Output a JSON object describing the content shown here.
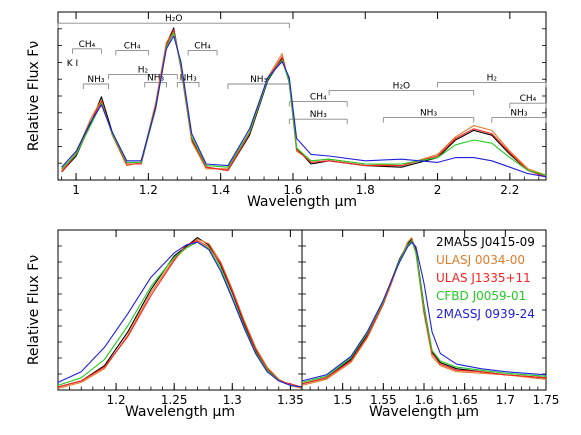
{
  "chart_data": [
    {
      "type": "line",
      "xlabel": "Wavelength μm",
      "ylabel": "Relative Flux Fν",
      "xlim": [
        0.95,
        2.3
      ],
      "ylim": [
        0,
        1.05
      ],
      "x_ticks": [
        "1",
        "1.2",
        "1.4",
        "1.6",
        "1.8",
        "2",
        "2.2"
      ],
      "x_tick_values": [
        1.0,
        1.2,
        1.4,
        1.6,
        1.8,
        2.0,
        2.2
      ],
      "annotations": [
        {
          "label": "H₂O",
          "x0": 0.95,
          "x1": 1.59,
          "y": 0.98
        },
        {
          "label": "CH₄",
          "x0": 0.99,
          "x1": 1.07,
          "y": 0.82
        },
        {
          "label": "K I",
          "x0": 0.99,
          "x1": 0.99,
          "y": 0.7
        },
        {
          "label": "NH₃",
          "x0": 1.02,
          "x1": 1.09,
          "y": 0.6
        },
        {
          "label": "CH₄",
          "x0": 1.11,
          "x1": 1.2,
          "y": 0.81
        },
        {
          "label": "H₂",
          "x0": 1.09,
          "x1": 1.28,
          "y": 0.66
        },
        {
          "label": "NH₃",
          "x0": 1.19,
          "x1": 1.25,
          "y": 0.61
        },
        {
          "label": "CH₄",
          "x0": 1.31,
          "x1": 1.39,
          "y": 0.81
        },
        {
          "label": "NH₃",
          "x0": 1.28,
          "x1": 1.34,
          "y": 0.61
        },
        {
          "label": "NH₃",
          "x0": 1.42,
          "x1": 1.59,
          "y": 0.6
        },
        {
          "label": "H₂O",
          "x0": 1.7,
          "x1": 2.1,
          "y": 0.56
        },
        {
          "label": "CH₄",
          "x0": 1.59,
          "x1": 1.75,
          "y": 0.49
        },
        {
          "label": "NH₃",
          "x0": 1.59,
          "x1": 1.75,
          "y": 0.38
        },
        {
          "label": "NH₃",
          "x0": 1.85,
          "x1": 2.1,
          "y": 0.39
        },
        {
          "label": "H₂",
          "x0": 2.0,
          "x1": 2.3,
          "y": 0.61
        },
        {
          "label": "CH₄",
          "x0": 2.2,
          "x1": 2.3,
          "y": 0.48
        },
        {
          "label": "NH₃",
          "x0": 2.15,
          "x1": 2.3,
          "y": 0.39
        }
      ],
      "series": [
        {
          "color": "#000000",
          "x": [
            0.96,
            1.0,
            1.04,
            1.07,
            1.1,
            1.14,
            1.18,
            1.22,
            1.25,
            1.27,
            1.29,
            1.32,
            1.36,
            1.42,
            1.48,
            1.53,
            1.57,
            1.59,
            1.61,
            1.65,
            1.7,
            1.8,
            1.9,
            2.0,
            2.05,
            2.1,
            2.15,
            2.2,
            2.25,
            2.3
          ],
          "y": [
            0.05,
            0.15,
            0.35,
            0.52,
            0.3,
            0.1,
            0.1,
            0.45,
            0.85,
            0.95,
            0.7,
            0.25,
            0.08,
            0.06,
            0.28,
            0.62,
            0.76,
            0.62,
            0.2,
            0.1,
            0.12,
            0.09,
            0.08,
            0.14,
            0.25,
            0.31,
            0.28,
            0.16,
            0.06,
            0.02
          ]
        },
        {
          "color": "#e07b2a",
          "x": [
            0.96,
            1.0,
            1.04,
            1.07,
            1.1,
            1.14,
            1.18,
            1.22,
            1.25,
            1.27,
            1.29,
            1.32,
            1.36,
            1.42,
            1.48,
            1.53,
            1.57,
            1.59,
            1.61,
            1.65,
            1.7,
            1.8,
            1.9,
            2.0,
            2.05,
            2.1,
            2.15,
            2.2,
            2.25,
            2.3
          ],
          "y": [
            0.06,
            0.17,
            0.38,
            0.5,
            0.28,
            0.09,
            0.11,
            0.48,
            0.86,
            0.93,
            0.7,
            0.24,
            0.07,
            0.07,
            0.3,
            0.64,
            0.79,
            0.6,
            0.18,
            0.12,
            0.13,
            0.1,
            0.09,
            0.16,
            0.27,
            0.34,
            0.31,
            0.18,
            0.07,
            0.03
          ]
        },
        {
          "color": "#ff2020",
          "x": [
            0.96,
            1.0,
            1.04,
            1.07,
            1.1,
            1.14,
            1.18,
            1.22,
            1.25,
            1.27,
            1.29,
            1.32,
            1.36,
            1.42,
            1.48,
            1.53,
            1.57,
            1.59,
            1.61,
            1.65,
            1.7,
            1.8,
            1.9,
            2.0,
            2.05,
            2.1,
            2.15,
            2.2,
            2.25,
            2.3
          ],
          "y": [
            0.05,
            0.16,
            0.36,
            0.49,
            0.29,
            0.1,
            0.1,
            0.46,
            0.84,
            0.94,
            0.71,
            0.26,
            0.08,
            0.06,
            0.29,
            0.63,
            0.77,
            0.61,
            0.19,
            0.11,
            0.12,
            0.09,
            0.09,
            0.15,
            0.26,
            0.32,
            0.29,
            0.17,
            0.06,
            0.02
          ]
        },
        {
          "color": "#22cc22",
          "x": [
            0.96,
            1.0,
            1.04,
            1.07,
            1.1,
            1.14,
            1.18,
            1.22,
            1.25,
            1.27,
            1.29,
            1.32,
            1.36,
            1.42,
            1.48,
            1.53,
            1.57,
            1.59,
            1.61,
            1.65,
            1.7,
            1.8,
            1.9,
            2.0,
            2.05,
            2.1,
            2.15,
            2.2,
            2.25,
            2.3
          ],
          "y": [
            0.07,
            0.16,
            0.34,
            0.48,
            0.29,
            0.11,
            0.11,
            0.44,
            0.83,
            0.92,
            0.72,
            0.27,
            0.09,
            0.08,
            0.3,
            0.63,
            0.75,
            0.61,
            0.2,
            0.12,
            0.13,
            0.1,
            0.1,
            0.14,
            0.22,
            0.25,
            0.23,
            0.14,
            0.06,
            0.03
          ]
        },
        {
          "color": "#2020dd",
          "x": [
            0.96,
            1.0,
            1.04,
            1.07,
            1.1,
            1.14,
            1.18,
            1.22,
            1.25,
            1.27,
            1.29,
            1.32,
            1.36,
            1.42,
            1.48,
            1.53,
            1.57,
            1.59,
            1.61,
            1.65,
            1.7,
            1.8,
            1.9,
            2.0,
            2.05,
            2.1,
            2.15,
            2.2,
            2.25,
            2.3
          ],
          "y": [
            0.08,
            0.18,
            0.36,
            0.47,
            0.3,
            0.12,
            0.12,
            0.45,
            0.82,
            0.9,
            0.74,
            0.29,
            0.1,
            0.09,
            0.32,
            0.64,
            0.74,
            0.64,
            0.26,
            0.16,
            0.15,
            0.12,
            0.13,
            0.11,
            0.14,
            0.14,
            0.12,
            0.08,
            0.04,
            0.02
          ]
        }
      ]
    },
    {
      "type": "line",
      "xlabel": "Wavelength μm",
      "ylabel": "Relative Flux Fν",
      "xlim": [
        1.15,
        1.36
      ],
      "ylim": [
        0,
        1.05
      ],
      "x_ticks": [
        "1.2",
        "1.25",
        "1.3",
        "1.35"
      ],
      "x_tick_values": [
        1.2,
        1.25,
        1.3,
        1.35
      ],
      "series": [
        {
          "color": "#000000",
          "x": [
            1.15,
            1.17,
            1.19,
            1.21,
            1.23,
            1.25,
            1.26,
            1.27,
            1.28,
            1.29,
            1.3,
            1.31,
            1.32,
            1.33,
            1.34,
            1.35,
            1.36
          ],
          "y": [
            0.02,
            0.06,
            0.16,
            0.38,
            0.66,
            0.88,
            0.94,
            1.0,
            0.95,
            0.82,
            0.64,
            0.44,
            0.26,
            0.14,
            0.07,
            0.03,
            0.02
          ]
        },
        {
          "color": "#e07b2a",
          "x": [
            1.15,
            1.17,
            1.19,
            1.21,
            1.23,
            1.25,
            1.26,
            1.27,
            1.28,
            1.29,
            1.3,
            1.31,
            1.32,
            1.33,
            1.34,
            1.35,
            1.36
          ],
          "y": [
            0.01,
            0.05,
            0.14,
            0.36,
            0.64,
            0.86,
            0.93,
            0.99,
            0.96,
            0.84,
            0.66,
            0.46,
            0.28,
            0.15,
            0.07,
            0.03,
            0.01
          ]
        },
        {
          "color": "#ff2020",
          "x": [
            1.15,
            1.17,
            1.19,
            1.21,
            1.23,
            1.25,
            1.26,
            1.27,
            1.28,
            1.29,
            1.3,
            1.31,
            1.32,
            1.33,
            1.34,
            1.35,
            1.36
          ],
          "y": [
            0.02,
            0.06,
            0.15,
            0.35,
            0.62,
            0.85,
            0.95,
            0.98,
            0.94,
            0.83,
            0.65,
            0.45,
            0.27,
            0.14,
            0.06,
            0.04,
            0.02
          ]
        },
        {
          "color": "#22cc22",
          "x": [
            1.15,
            1.17,
            1.19,
            1.21,
            1.23,
            1.25,
            1.26,
            1.27,
            1.28,
            1.29,
            1.3,
            1.31,
            1.32,
            1.33,
            1.34,
            1.35,
            1.36
          ],
          "y": [
            0.03,
            0.08,
            0.2,
            0.42,
            0.68,
            0.87,
            0.93,
            0.97,
            0.93,
            0.8,
            0.61,
            0.42,
            0.25,
            0.13,
            0.06,
            0.03,
            0.02
          ]
        },
        {
          "color": "#2020dd",
          "x": [
            1.15,
            1.17,
            1.19,
            1.21,
            1.23,
            1.25,
            1.26,
            1.27,
            1.28,
            1.29,
            1.3,
            1.31,
            1.32,
            1.33,
            1.34,
            1.35,
            1.36
          ],
          "y": [
            0.05,
            0.12,
            0.28,
            0.5,
            0.74,
            0.9,
            0.95,
            0.97,
            0.92,
            0.78,
            0.6,
            0.41,
            0.24,
            0.12,
            0.06,
            0.03,
            0.02
          ]
        }
      ]
    },
    {
      "type": "line",
      "xlim": [
        1.45,
        1.75
      ],
      "ylim": [
        0,
        1.05
      ],
      "x_ticks": [
        "1.5",
        "1.55",
        "1.6",
        "1.65",
        "1.7",
        "1.75"
      ],
      "x_tick_values": [
        1.5,
        1.55,
        1.6,
        1.65,
        1.7,
        1.75
      ],
      "legend_position": "top-right",
      "series": [
        {
          "name": "2MASS J0415-09",
          "color": "#000000",
          "x": [
            1.45,
            1.48,
            1.51,
            1.53,
            1.55,
            1.56,
            1.57,
            1.58,
            1.585,
            1.59,
            1.6,
            1.61,
            1.62,
            1.64,
            1.67,
            1.7,
            1.75
          ],
          "y": [
            0.04,
            0.08,
            0.2,
            0.36,
            0.58,
            0.72,
            0.86,
            0.96,
            0.99,
            0.92,
            0.55,
            0.25,
            0.18,
            0.14,
            0.12,
            0.1,
            0.08
          ]
        },
        {
          "name": "ULASJ 0034-00",
          "color": "#e07b2a",
          "x": [
            1.45,
            1.48,
            1.51,
            1.53,
            1.55,
            1.56,
            1.57,
            1.58,
            1.585,
            1.59,
            1.6,
            1.61,
            1.62,
            1.64,
            1.67,
            1.7,
            1.75
          ],
          "y": [
            0.03,
            0.07,
            0.18,
            0.34,
            0.56,
            0.7,
            0.85,
            0.97,
            1.0,
            0.9,
            0.5,
            0.22,
            0.16,
            0.12,
            0.11,
            0.1,
            0.07
          ]
        },
        {
          "name": "ULAS J1335+11",
          "color": "#ff2020",
          "x": [
            1.45,
            1.48,
            1.51,
            1.53,
            1.55,
            1.56,
            1.57,
            1.58,
            1.585,
            1.59,
            1.6,
            1.61,
            1.62,
            1.64,
            1.67,
            1.7,
            1.75
          ],
          "y": [
            0.04,
            0.08,
            0.19,
            0.35,
            0.57,
            0.71,
            0.85,
            0.95,
            0.98,
            0.91,
            0.52,
            0.24,
            0.17,
            0.13,
            0.12,
            0.1,
            0.08
          ]
        },
        {
          "name": "CFBD J0059-01",
          "color": "#22cc22",
          "x": [
            1.45,
            1.48,
            1.51,
            1.53,
            1.55,
            1.56,
            1.57,
            1.58,
            1.585,
            1.59,
            1.6,
            1.61,
            1.62,
            1.64,
            1.67,
            1.7,
            1.75
          ],
          "y": [
            0.05,
            0.09,
            0.21,
            0.37,
            0.58,
            0.72,
            0.85,
            0.95,
            0.98,
            0.9,
            0.54,
            0.26,
            0.19,
            0.15,
            0.13,
            0.11,
            0.09
          ]
        },
        {
          "name": "2MASSJ 0939-24",
          "color": "#2020dd",
          "x": [
            1.45,
            1.48,
            1.51,
            1.53,
            1.55,
            1.56,
            1.57,
            1.58,
            1.585,
            1.59,
            1.6,
            1.61,
            1.62,
            1.64,
            1.67,
            1.7,
            1.75
          ],
          "y": [
            0.06,
            0.1,
            0.22,
            0.38,
            0.59,
            0.72,
            0.84,
            0.94,
            0.97,
            0.94,
            0.7,
            0.38,
            0.24,
            0.17,
            0.14,
            0.12,
            0.1
          ]
        }
      ]
    }
  ]
}
